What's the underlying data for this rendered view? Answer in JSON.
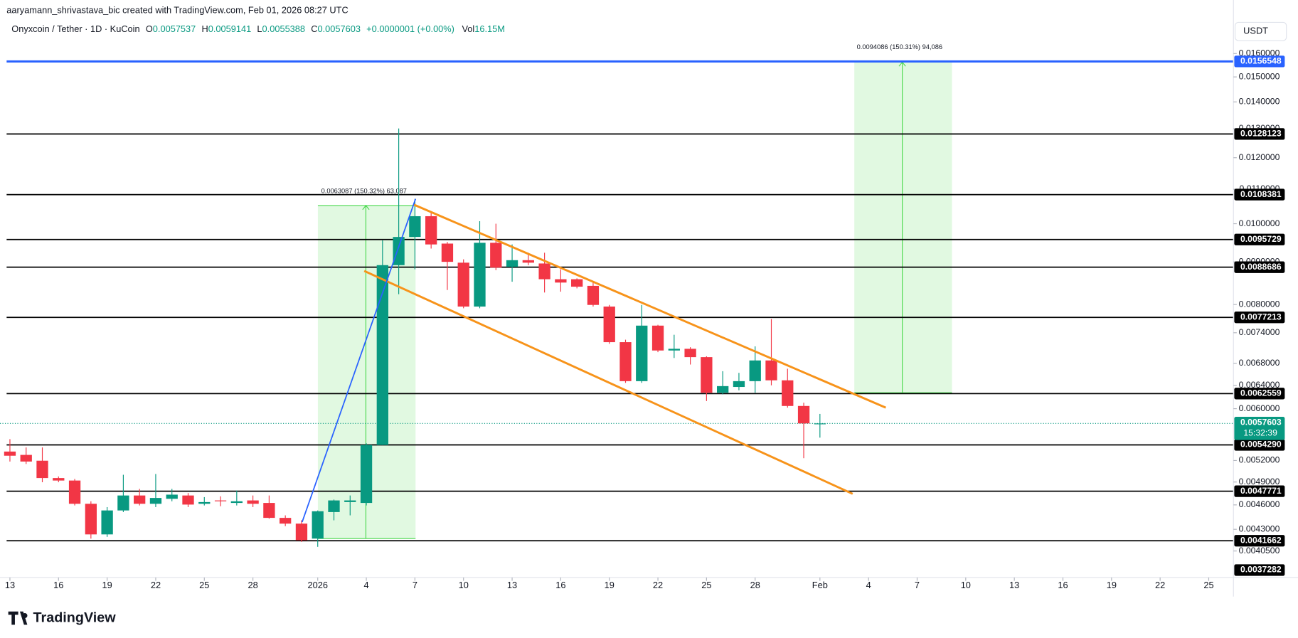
{
  "chart_data": {
    "type": "candlestick",
    "watermark": "aaryamann_shrivastava_bic created with TradingView.com, Feb 01, 2026 08:27 UTC",
    "symbol": "Onyxcoin / Tether · 1D · KuCoin",
    "ohlc_labels": [
      "O",
      "H",
      "L",
      "C"
    ],
    "change": "+0.0000001 (+0.00%)",
    "volume_label": "Vol",
    "volume": "16.15M",
    "currency": "USDT",
    "countdown": "15:32:39",
    "logo": "TradingView",
    "annotations": [
      "0.0063087 (150.32%) 63,087",
      "0.0094086 (150.31%) 94,086"
    ],
    "up_color": "#089981",
    "down_color": "#f23645",
    "log_scale": true,
    "grid": false,
    "categories": [
      "13",
      null,
      null,
      "16",
      null,
      null,
      "19",
      null,
      null,
      "22",
      null,
      null,
      "25",
      null,
      null,
      "28",
      null,
      null,
      null,
      "2026",
      null,
      null,
      "4",
      null,
      null,
      "7",
      null,
      null,
      "10",
      null,
      null,
      "13",
      null,
      null,
      "16",
      null,
      null,
      "19",
      null,
      null,
      "22",
      null,
      null,
      "25",
      null,
      null,
      "28",
      null,
      null,
      null,
      "Feb",
      null,
      null,
      "4",
      null,
      null,
      "7",
      null,
      null,
      "10",
      null,
      null,
      "13",
      null,
      null,
      "16",
      null,
      null,
      "19",
      null,
      null,
      "22",
      null,
      null,
      "25",
      null
    ],
    "open": [
      0.00533,
      0.005281,
      0.005197,
      0.004954,
      0.00492,
      0.004614,
      0.00424,
      0.00453,
      0.004721,
      0.004614,
      0.004678,
      0.004721,
      0.004614,
      0.004657,
      0.004625,
      0.004657,
      0.004625,
      0.004438,
      0.004368,
      0.004191,
      0.00451,
      0.004636,
      0.004625,
      0.005428,
      0.008919,
      0.009641,
      0.01021,
      0.009466,
      0.00898,
      0.007955,
      0.009487,
      0.008878,
      0.009042,
      0.00896,
      0.008579,
      0.008579,
      0.008423,
      0.007955,
      0.00721,
      0.006474,
      0.007547,
      0.007046,
      0.007079,
      0.006918,
      0.00627,
      0.006371,
      0.006474,
      0.006855,
      0.006489,
      0.006045,
      0.0057537,
      null,
      null,
      null,
      null,
      null,
      null,
      null,
      null,
      null,
      null,
      null,
      null,
      null,
      null,
      null,
      null,
      null,
      null,
      null,
      null,
      null,
      null,
      null,
      null,
      null
    ],
    "high": [
      0.005516,
      0.005391,
      0.005391,
      0.004976,
      0.004942,
      0.004646,
      0.004572,
      0.004999,
      0.004808,
      0.00501,
      0.004808,
      0.004753,
      0.0047,
      0.00471,
      0.004786,
      0.004721,
      0.004721,
      0.004469,
      0.004408,
      0.00453,
      0.004668,
      0.004721,
      0.005453,
      0.009553,
      0.01301,
      0.01071,
      0.01035,
      0.009509,
      0.009063,
      0.01007,
      0.01,
      0.009444,
      0.00923,
      0.00923,
      0.008817,
      0.0086,
      0.00852,
      0.007991,
      0.007259,
      0.007991,
      0.007564,
      0.007359,
      0.007111,
      0.006934,
      0.006654,
      0.006624,
      0.007127,
      0.007686,
      0.0067,
      0.0061,
      0.0059141,
      null,
      null,
      null,
      null,
      null,
      null,
      null,
      null,
      null,
      null,
      null,
      null,
      null,
      null,
      null,
      null,
      null,
      null,
      null,
      null,
      null,
      null,
      null,
      null,
      null
    ],
    "low": [
      0.005185,
      0.00515,
      0.004897,
      0.004897,
      0.004593,
      0.004191,
      0.004211,
      0.00451,
      0.004593,
      0.004572,
      0.004646,
      0.004572,
      0.004593,
      0.004583,
      0.004593,
      0.004572,
      0.004428,
      0.004338,
      0.004153,
      0.004097,
      0.004408,
      0.004469,
      0.004593,
      0.005428,
      0.008232,
      0.008817,
      0.009337,
      0.008327,
      0.007918,
      0.007918,
      0.008797,
      0.00852,
      0.008919,
      0.00827,
      0.008289,
      0.008365,
      0.007955,
      0.007177,
      0.006444,
      0.006444,
      0.007014,
      0.006902,
      0.006778,
      0.006128,
      0.006241,
      0.006313,
      0.00627,
      0.0064,
      0.006017,
      0.005233,
      0.0055388,
      null,
      null,
      null,
      null,
      null,
      null,
      null,
      null,
      null,
      null,
      null,
      null,
      null,
      null,
      null,
      null,
      null,
      null,
      null,
      null,
      null,
      null,
      null,
      null,
      null
    ],
    "close": [
      0.005269,
      0.005185,
      0.004954,
      0.00492,
      0.004614,
      0.00424,
      0.00453,
      0.004721,
      0.004614,
      0.004689,
      0.004732,
      0.004604,
      0.004636,
      0.004646,
      0.004646,
      0.004614,
      0.004438,
      0.004368,
      0.004172,
      0.00452,
      0.004657,
      0.004657,
      0.005428,
      0.008919,
      0.009641,
      0.01021,
      0.009444,
      0.009001,
      0.007955,
      0.009487,
      0.008858,
      0.009042,
      0.00898,
      0.008579,
      0.0085,
      0.008404,
      0.007991,
      0.00721,
      0.006474,
      0.007547,
      0.007046,
      0.007079,
      0.006918,
      0.00627,
      0.006386,
      0.006474,
      0.006855,
      0.006489,
      0.006045,
      0.005761,
      0.0057603,
      null,
      null,
      null,
      null,
      null,
      null,
      null,
      null,
      null,
      null,
      null,
      null,
      null,
      null,
      null,
      null,
      null,
      null,
      null,
      null,
      null,
      null,
      null,
      null,
      null
    ],
    "ylim": [
      0.003764,
      0.01772
    ],
    "yticks": [
      {
        "value": 0.016,
        "label": "0.0160000"
      },
      {
        "value": 0.015,
        "label": "0.0150000"
      },
      {
        "value": 0.014,
        "label": "0.0140000"
      },
      {
        "value": 0.013,
        "label": "0.0130000"
      },
      {
        "value": 0.012,
        "label": "0.0120000"
      },
      {
        "value": 0.011,
        "label": "0.0110000"
      },
      {
        "value": 0.01,
        "label": "0.0100000"
      },
      {
        "value": 0.009,
        "label": "0.0090000"
      },
      {
        "value": 0.008,
        "label": "0.0080000"
      },
      {
        "value": 0.0074,
        "label": "0.0074000"
      },
      {
        "value": 0.0068,
        "label": "0.0068000"
      },
      {
        "value": 0.0064,
        "label": "0.0064000"
      },
      {
        "value": 0.006,
        "label": "0.0060000"
      },
      {
        "value": 0.0052,
        "label": "0.0052000"
      },
      {
        "value": 0.0049,
        "label": "0.0049000"
      },
      {
        "value": 0.0046,
        "label": "0.0046000"
      },
      {
        "value": 0.0043,
        "label": "0.0043000"
      },
      {
        "value": 0.00405,
        "label": "0.0040500"
      }
    ],
    "levels": [
      {
        "value": 0.0156548,
        "label": "0.0156548",
        "color": "#2962ff"
      },
      {
        "value": 0.0128123,
        "label": "0.0128123",
        "color": "#000000"
      },
      {
        "value": 0.0108381,
        "label": "0.0108381",
        "color": "#000000"
      },
      {
        "value": 0.0095729,
        "label": "0.0095729",
        "color": "#000000"
      },
      {
        "value": 0.0088686,
        "label": "0.0088686",
        "color": "#000000"
      },
      {
        "value": 0.0077213,
        "label": "0.0077213",
        "color": "#000000"
      },
      {
        "value": 0.0062559,
        "label": "0.0062559",
        "color": "#000000"
      },
      {
        "value": 0.005429,
        "label": "0.0054290",
        "color": "#000000"
      },
      {
        "value": 0.0047771,
        "label": "0.0047771",
        "color": "#000000"
      },
      {
        "value": 0.0041662,
        "label": "0.0041662",
        "color": "#000000"
      }
    ],
    "low_marker": {
      "value": 0.0037282,
      "label": "0.0037282"
    }
  }
}
